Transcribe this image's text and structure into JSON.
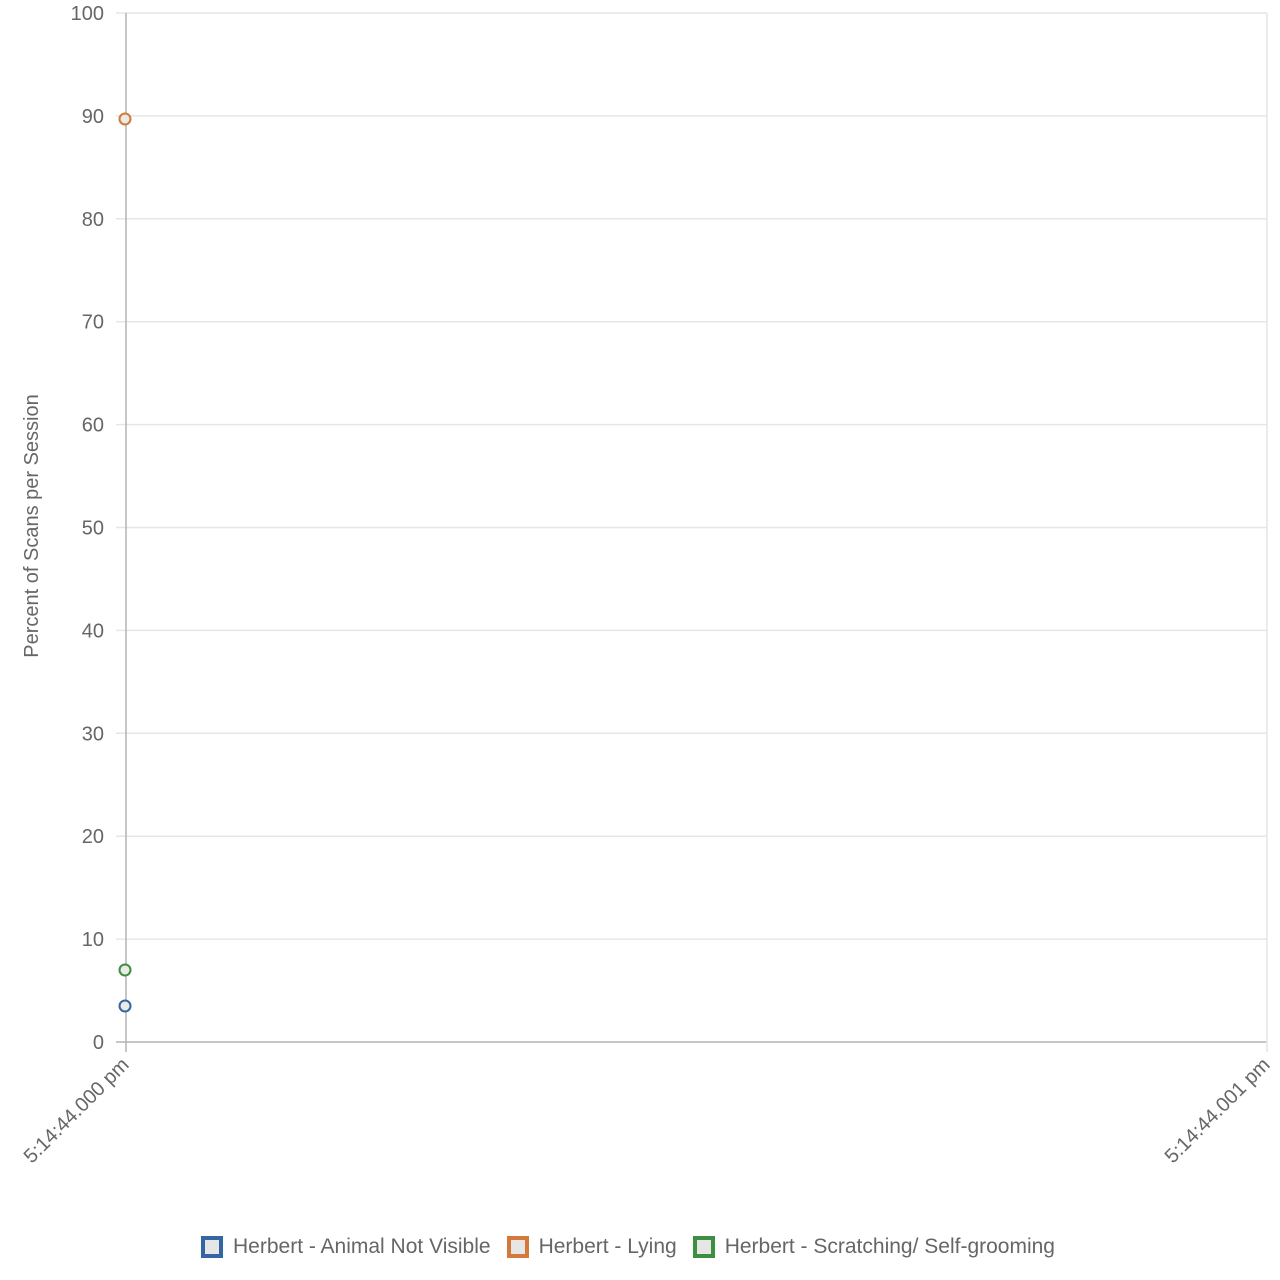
{
  "chart_data": {
    "type": "scatter",
    "title": "",
    "ylabel": "Percent of Scans per Session",
    "xlabel": "",
    "ylim": [
      0,
      100
    ],
    "y_ticks": [
      "0",
      "10",
      "20",
      "30",
      "40",
      "50",
      "60",
      "70",
      "80",
      "90",
      "100"
    ],
    "x_tick_labels": [
      "5:14:44.000 pm",
      "5:14:44.001 pm"
    ],
    "grid": true,
    "legend_position": "bottom",
    "series": [
      {
        "name": "Herbert - Animal Not Visible",
        "color": "#3465a4",
        "points": [
          {
            "x": "5:14:44.000 pm",
            "y": 3.5
          }
        ]
      },
      {
        "name": "Herbert - Lying",
        "color": "#d4793a",
        "points": [
          {
            "x": "5:14:44.000 pm",
            "y": 89.7
          }
        ]
      },
      {
        "name": "Herbert - Scratching/ Self-grooming",
        "color": "#3e8e41",
        "points": [
          {
            "x": "5:14:44.000 pm",
            "y": 7.0
          }
        ]
      }
    ]
  }
}
